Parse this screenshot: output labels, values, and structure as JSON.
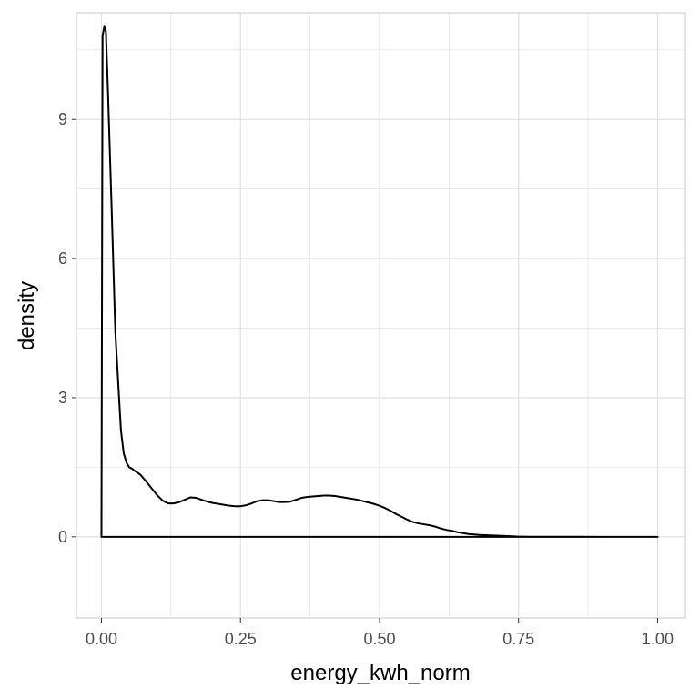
{
  "chart_data": {
    "type": "area",
    "title": "",
    "xlabel": "energy_kwh_norm",
    "ylabel": "density",
    "xlim": [
      -0.045,
      1.05
    ],
    "ylim": [
      -1.75,
      11.3
    ],
    "x_ticks": [
      0,
      0.25,
      0.5,
      0.75,
      1
    ],
    "x_tick_labels": [
      "0.00",
      "0.25",
      "0.50",
      "0.75",
      "1.00"
    ],
    "y_ticks": [
      0,
      3,
      6,
      9
    ],
    "y_tick_labels": [
      "0",
      "3",
      "6",
      "9"
    ],
    "grid": true,
    "legend": "none",
    "line_color": "#000000",
    "grid_color": "#dedede",
    "border_color": "#c8c8c8",
    "series": [
      {
        "x": [
          0,
          0.002,
          0.005,
          0.008,
          0.012,
          0.018,
          0.025,
          0.035,
          0.04,
          0.045,
          0.05,
          0.055,
          0.06,
          0.065,
          0.07,
          0.08,
          0.09,
          0.1,
          0.11,
          0.12,
          0.13,
          0.14,
          0.15,
          0.16,
          0.17,
          0.18,
          0.19,
          0.2,
          0.21,
          0.22,
          0.23,
          0.24,
          0.25,
          0.26,
          0.27,
          0.28,
          0.29,
          0.3,
          0.31,
          0.32,
          0.33,
          0.34,
          0.35,
          0.36,
          0.37,
          0.38,
          0.39,
          0.4,
          0.41,
          0.42,
          0.43,
          0.44,
          0.45,
          0.46,
          0.47,
          0.48,
          0.49,
          0.5,
          0.51,
          0.52,
          0.53,
          0.54,
          0.55,
          0.56,
          0.57,
          0.58,
          0.59,
          0.6,
          0.61,
          0.62,
          0.63,
          0.64,
          0.65,
          0.66,
          0.68,
          0.7,
          0.72,
          0.74,
          0.75,
          0.76,
          0.77,
          0.78,
          0.8,
          0.82,
          0.85,
          0.9,
          0.95,
          1.0,
          1.0
        ],
        "values": [
          0,
          10.8,
          11.0,
          10.9,
          9.5,
          7.2,
          4.4,
          2.3,
          1.8,
          1.6,
          1.5,
          1.47,
          1.42,
          1.38,
          1.34,
          1.2,
          1.05,
          0.9,
          0.78,
          0.72,
          0.72,
          0.75,
          0.8,
          0.85,
          0.84,
          0.8,
          0.76,
          0.73,
          0.71,
          0.69,
          0.67,
          0.66,
          0.66,
          0.68,
          0.72,
          0.77,
          0.79,
          0.79,
          0.77,
          0.75,
          0.75,
          0.76,
          0.8,
          0.84,
          0.86,
          0.87,
          0.88,
          0.89,
          0.89,
          0.88,
          0.86,
          0.84,
          0.82,
          0.8,
          0.77,
          0.74,
          0.71,
          0.67,
          0.62,
          0.56,
          0.49,
          0.43,
          0.37,
          0.32,
          0.29,
          0.27,
          0.25,
          0.22,
          0.18,
          0.15,
          0.13,
          0.1,
          0.08,
          0.06,
          0.04,
          0.03,
          0.02,
          0.01,
          0.005,
          0.003,
          0.002,
          0.001,
          0.0005,
          0.0003,
          0.0002,
          0.0001,
          0.0001,
          0,
          0
        ]
      }
    ]
  }
}
